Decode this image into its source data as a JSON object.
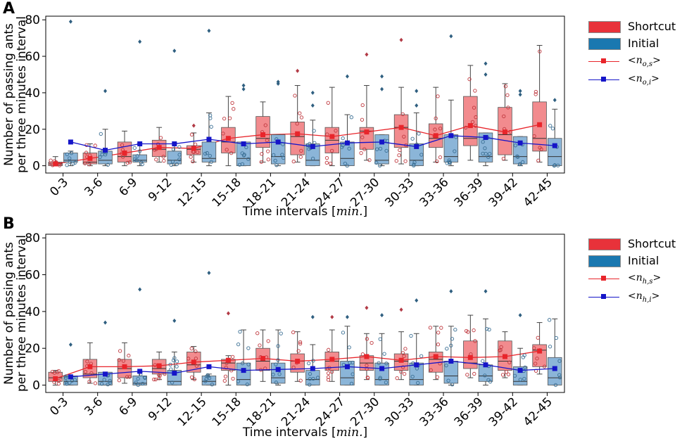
{
  "chart_data": [
    {
      "type": "box",
      "panel_label": "A",
      "categories": [
        "0-3",
        "3-6",
        "6-9",
        "9-12",
        "12-15",
        "15-18",
        "18-21",
        "21-24",
        "24-27",
        "27-30",
        "30-33",
        "33-36",
        "36-39",
        "39-42",
        "42-45"
      ],
      "xlabel": "Time intervals [",
      "xlabel_unit": "min.",
      "xlabel_end": "]",
      "ylabel_line1": "Number of passing ants",
      "ylabel_line2": "per three minutes interval",
      "ylim": [
        -4,
        82
      ],
      "yticks": [
        "0",
        "20",
        "40",
        "60",
        "80"
      ],
      "yticks_values": [
        0,
        20,
        40,
        60,
        80
      ],
      "series": [
        {
          "name": "Shortcut",
          "color": "#f28b8e",
          "line_color": "#e8252b",
          "boxes": [
            {
              "q1": 0,
              "median": 1,
              "q3": 2,
              "wlo": 0,
              "whi": 5
            },
            {
              "q1": 1,
              "median": 2,
              "q3": 7,
              "wlo": 0,
              "whi": 12
            },
            {
              "q1": 2,
              "median": 5,
              "q3": 13,
              "wlo": 0,
              "whi": 19
            },
            {
              "q1": 5,
              "median": 9,
              "q3": 14,
              "wlo": 2,
              "whi": 21
            },
            {
              "q1": 6,
              "median": 9,
              "q3": 11,
              "wlo": 2,
              "whi": 18
            },
            {
              "q1": 7,
              "median": 13,
              "q3": 21,
              "wlo": 0,
              "whi": 38
            },
            {
              "q1": 10,
              "median": 15,
              "q3": 27,
              "wlo": 2,
              "whi": 35
            },
            {
              "q1": 6,
              "median": 16,
              "q3": 24,
              "wlo": 2,
              "whi": 44
            },
            {
              "q1": 7,
              "median": 14,
              "q3": 21,
              "wlo": 0,
              "whi": 43
            },
            {
              "q1": 9,
              "median": 19,
              "q3": 21,
              "wlo": 3,
              "whi": 44
            },
            {
              "q1": 10,
              "median": 21,
              "q3": 28,
              "wlo": 1,
              "whi": 43
            },
            {
              "q1": 10,
              "median": 15,
              "q3": 23,
              "wlo": 2,
              "whi": 43
            },
            {
              "q1": 11,
              "median": 15,
              "q3": 38,
              "wlo": 3,
              "whi": 55
            },
            {
              "q1": 6,
              "median": 17,
              "q3": 32,
              "wlo": 3,
              "whi": 45
            },
            {
              "q1": 8,
              "median": 15,
              "q3": 35,
              "wlo": 2,
              "whi": 66
            }
          ],
          "means": [
            1,
            4,
            7,
            10,
            9.5,
            15,
            17,
            17.5,
            16,
            18.5,
            21,
            16.5,
            22,
            18.5,
            22.5
          ],
          "outliers": [
            [],
            [],
            [],
            [],
            [
              22
            ],
            [],
            [],
            [
              52
            ],
            [],
            [
              61
            ],
            [
              69
            ],
            [],
            [],
            [],
            []
          ]
        },
        {
          "name": "Initial",
          "color": "#8bb5d8",
          "line_color": "#1515c8",
          "boxes": [
            {
              "q1": 2,
              "median": 3,
              "q3": 7,
              "wlo": 0,
              "whi": 8
            },
            {
              "q1": 1,
              "median": 3,
              "q3": 8,
              "wlo": 0,
              "whi": 20
            },
            {
              "q1": 2,
              "median": 3,
              "q3": 6,
              "wlo": 0,
              "whi": 12
            },
            {
              "q1": 1,
              "median": 3,
              "q3": 8,
              "wlo": 0,
              "whi": 12
            },
            {
              "q1": 2,
              "median": 4,
              "q3": 13,
              "wlo": 0,
              "whi": 29
            },
            {
              "q1": 0,
              "median": 4,
              "q3": 13,
              "wlo": 0,
              "whi": 13
            },
            {
              "q1": 1,
              "median": 5,
              "q3": 17,
              "wlo": 0,
              "whi": 17
            },
            {
              "q1": 0,
              "median": 3,
              "q3": 12,
              "wlo": 0,
              "whi": 25
            },
            {
              "q1": 0,
              "median": 4,
              "q3": 13,
              "wlo": 0,
              "whi": 28
            },
            {
              "q1": 1,
              "median": 3,
              "q3": 17,
              "wlo": 0,
              "whi": 17
            },
            {
              "q1": 0,
              "median": 3,
              "q3": 12,
              "wlo": 0,
              "whi": 29
            },
            {
              "q1": 2,
              "median": 5,
              "q3": 17,
              "wlo": 0,
              "whi": 36
            },
            {
              "q1": 2,
              "median": 5,
              "q3": 18,
              "wlo": 0,
              "whi": 18
            },
            {
              "q1": 1,
              "median": 5,
              "q3": 16,
              "wlo": 0,
              "whi": 16
            },
            {
              "q1": 0,
              "median": 5,
              "q3": 15,
              "wlo": 0,
              "whi": 31
            }
          ],
          "means": [
            13,
            8.5,
            12,
            12,
            14.5,
            12,
            13,
            10.5,
            12.5,
            13,
            10.5,
            16.5,
            15.5,
            12.5,
            11
          ],
          "outliers": [
            [
              79
            ],
            [
              41
            ],
            [
              68
            ],
            [
              63
            ],
            [
              74
            ],
            [
              44,
              42
            ],
            [
              46,
              45
            ],
            [
              40,
              33
            ],
            [
              49
            ],
            [
              49,
              42
            ],
            [
              41,
              33
            ],
            [
              71
            ],
            [
              56,
              50
            ],
            [
              41,
              39
            ],
            [
              36
            ]
          ]
        }
      ],
      "legend": [
        {
          "label": "Shortcut"
        },
        {
          "label": "Initial"
        },
        {
          "label": "<n",
          "sub": "o,s",
          "end": ">"
        },
        {
          "label": "<n",
          "sub": "o,i",
          "end": ">"
        }
      ]
    },
    {
      "type": "box",
      "panel_label": "B",
      "categories": [
        "0-3",
        "3-6",
        "6-9",
        "9-12",
        "12-15",
        "15-18",
        "18-21",
        "21-24",
        "24-27",
        "27-30",
        "30-33",
        "33-36",
        "36-39",
        "39-42",
        "42-45"
      ],
      "xlabel": "Time intervals [",
      "xlabel_unit": "min.",
      "xlabel_end": "]",
      "ylabel_line1": "Number of passing ants",
      "ylabel_line2": "per three minutes interval",
      "ylim": [
        -4,
        82
      ],
      "yticks": [
        "0",
        "20",
        "40",
        "60",
        "80"
      ],
      "yticks_values": [
        0,
        20,
        40,
        60,
        80
      ],
      "series": [
        {
          "name": "Shortcut",
          "color": "#f28b8e",
          "line_color": "#e8252b",
          "boxes": [
            {
              "q1": 2,
              "median": 4,
              "q3": 7,
              "wlo": 0,
              "whi": 8
            },
            {
              "q1": 4,
              "median": 6,
              "q3": 14,
              "wlo": 1,
              "whi": 23
            },
            {
              "q1": 4,
              "median": 9,
              "q3": 14,
              "wlo": 1,
              "whi": 23
            },
            {
              "q1": 6,
              "median": 9,
              "q3": 14,
              "wlo": 3,
              "whi": 18
            },
            {
              "q1": 7,
              "median": 11,
              "q3": 18,
              "wlo": 3,
              "whi": 21
            },
            {
              "q1": 8,
              "median": 12,
              "q3": 14,
              "wlo": 0,
              "whi": 16
            },
            {
              "q1": 8,
              "median": 13,
              "q3": 20,
              "wlo": 2,
              "whi": 30
            },
            {
              "q1": 7,
              "median": 13,
              "q3": 17,
              "wlo": 2,
              "whi": 29
            },
            {
              "q1": 8,
              "median": 13,
              "q3": 18,
              "wlo": 2,
              "whi": 30
            },
            {
              "q1": 8,
              "median": 12,
              "q3": 16,
              "wlo": 3,
              "whi": 28
            },
            {
              "q1": 8,
              "median": 13,
              "q3": 17,
              "wlo": 3,
              "whi": 29
            },
            {
              "q1": 7,
              "median": 14,
              "q3": 18,
              "wlo": 3,
              "whi": 32
            },
            {
              "q1": 9,
              "median": 12,
              "q3": 24,
              "wlo": 4,
              "whi": 38
            },
            {
              "q1": 8,
              "median": 13,
              "q3": 24,
              "wlo": 4,
              "whi": 29
            },
            {
              "q1": 10,
              "median": 19,
              "q3": 22,
              "wlo": 6,
              "whi": 34
            }
          ],
          "means": [
            3.5,
            10,
            10,
            10.5,
            12.5,
            13.5,
            14.5,
            13,
            14,
            15.5,
            13.5,
            15.5,
            15,
            15.5,
            18.5
          ],
          "outliers": [
            [],
            [],
            [],
            [],
            [],
            [
              39
            ],
            [],
            [],
            [
              37
            ],
            [
              42
            ],
            [
              41
            ],
            [],
            [],
            [],
            []
          ]
        },
        {
          "name": "Initial",
          "color": "#8bb5d8",
          "line_color": "#1515c8",
          "boxes": [
            {
              "q1": 0,
              "median": 2,
              "q3": 5,
              "wlo": 0,
              "whi": 5
            },
            {
              "q1": 0,
              "median": 2,
              "q3": 7,
              "wlo": 0,
              "whi": 7
            },
            {
              "q1": 0,
              "median": 1,
              "q3": 5,
              "wlo": 0,
              "whi": 7
            },
            {
              "q1": 0,
              "median": 2,
              "q3": 8,
              "wlo": 0,
              "whi": 18
            },
            {
              "q1": 0,
              "median": 2,
              "q3": 5,
              "wlo": 0,
              "whi": 6
            },
            {
              "q1": 0,
              "median": 3,
              "q3": 12,
              "wlo": 0,
              "whi": 30
            },
            {
              "q1": 1,
              "median": 4,
              "q3": 12,
              "wlo": 0,
              "whi": 30
            },
            {
              "q1": 0,
              "median": 3,
              "q3": 8,
              "wlo": 0,
              "whi": 22
            },
            {
              "q1": 0,
              "median": 4,
              "q3": 13,
              "wlo": 0,
              "whi": 32
            },
            {
              "q1": 0,
              "median": 3,
              "q3": 12,
              "wlo": 0,
              "whi": 28
            },
            {
              "q1": 0,
              "median": 3,
              "q3": 12,
              "wlo": 0,
              "whi": 28
            },
            {
              "q1": 1,
              "median": 5,
              "q3": 13,
              "wlo": 0,
              "whi": 32
            },
            {
              "q1": 2,
              "median": 5,
              "q3": 11,
              "wlo": 0,
              "whi": 36
            },
            {
              "q1": 0,
              "median": 2,
              "q3": 10,
              "wlo": 0,
              "whi": 20
            },
            {
              "q1": 0,
              "median": 4,
              "q3": 15,
              "wlo": 0,
              "whi": 36
            }
          ],
          "means": [
            4.5,
            6,
            7.5,
            6.5,
            10,
            8,
            8.5,
            9,
            10,
            9,
            11,
            13,
            11,
            8,
            9
          ],
          "outliers": [
            [
              22
            ],
            [
              34
            ],
            [
              52
            ],
            [
              35
            ],
            [
              61
            ],
            [],
            [],
            [
              37
            ],
            [
              37
            ],
            [
              38
            ],
            [
              46
            ],
            [
              51
            ],
            [
              51
            ],
            [
              38
            ],
            []
          ]
        }
      ],
      "legend": [
        {
          "label": "Shortcut"
        },
        {
          "label": "Initial"
        },
        {
          "label": "<n",
          "sub": "h,s",
          "end": ">"
        },
        {
          "label": "<n",
          "sub": "h,i",
          "end": ">"
        }
      ]
    }
  ]
}
